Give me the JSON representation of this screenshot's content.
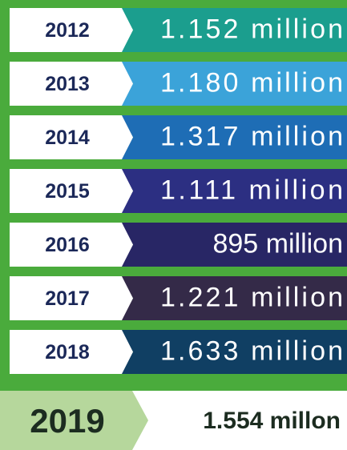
{
  "rows": [
    {
      "year": "2012",
      "value": "1.152 million",
      "color": "#1b9e8e"
    },
    {
      "year": "2013",
      "value": "1.180 million",
      "color": "#3ba3d9"
    },
    {
      "year": "2014",
      "value": "1.317 million",
      "color": "#1e6db5"
    },
    {
      "year": "2015",
      "value": "1.111 million",
      "color": "#2c2f82"
    },
    {
      "year": "2016",
      "value": "895 million",
      "color": "#282665"
    },
    {
      "year": "2017",
      "value": "1.221 million",
      "color": "#342a48"
    },
    {
      "year": "2018",
      "value": "1.633 million",
      "color": "#103f63"
    }
  ],
  "highlight": {
    "year": "2019",
    "value": "1.554 millon",
    "color": "#b6d79c"
  }
}
